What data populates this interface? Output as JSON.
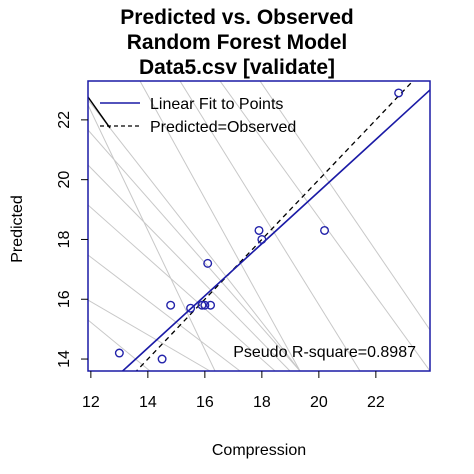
{
  "chart_data": {
    "type": "scatter",
    "title": [
      "Predicted vs. Observed",
      "Random Forest Model",
      "Data5.csv [validate]"
    ],
    "xlabel": "Compression",
    "ylabel": "Predicted",
    "xlim": [
      11.9,
      23.9
    ],
    "ylim": [
      13.6,
      23.3
    ],
    "x_ticks": [
      12,
      14,
      16,
      18,
      20,
      22
    ],
    "y_ticks": [
      14,
      16,
      18,
      20,
      22
    ],
    "grid": false,
    "legend_position": "top-left",
    "legend": [
      {
        "label": "Linear Fit to Points",
        "style": "solid",
        "color": "#1a1aa6"
      },
      {
        "label": "Predicted=Observed",
        "style": "dashed",
        "color": "#000000"
      }
    ],
    "annotation": "Pseudo R-square=0.8987",
    "points": {
      "x": [
        13.0,
        14.5,
        14.8,
        15.5,
        15.9,
        16.0,
        16.2,
        16.1,
        17.9,
        18.0,
        20.2,
        22.8
      ],
      "y": [
        14.2,
        14.0,
        15.8,
        15.7,
        15.8,
        15.8,
        15.8,
        17.2,
        18.3,
        18.0,
        18.3,
        22.9
      ],
      "color": "#2222aa"
    },
    "fit_line": {
      "x": [
        13.0,
        23.9
      ],
      "y": [
        13.5,
        23.0
      ],
      "color": "#1a1aa6"
    },
    "identity_line": {
      "x": [
        13.3,
        23.3
      ],
      "y": [
        13.3,
        23.3
      ],
      "color": "#000000"
    },
    "background_lines_color": "#c8c8c8"
  }
}
